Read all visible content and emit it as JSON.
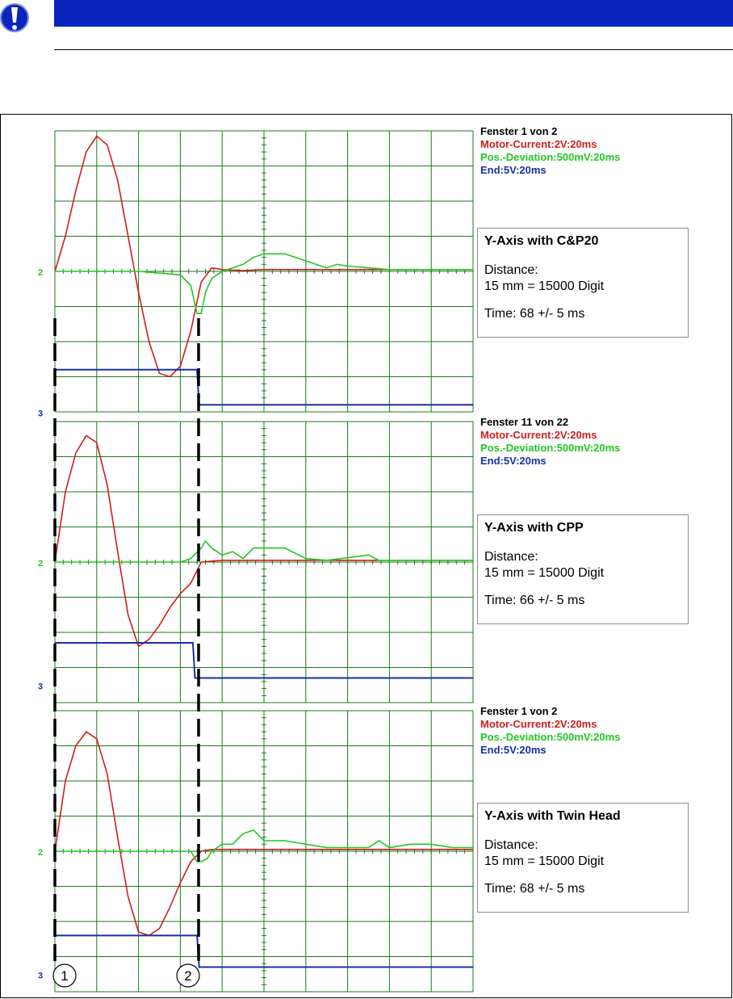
{
  "colors": {
    "header": "#0b24bd",
    "grid": "#1c7a1c",
    "motor": "#d21c1c",
    "deviation": "#22c722",
    "end": "#1530a8",
    "dash": "#000000"
  },
  "icons": {
    "warning": "exclamation-icon"
  },
  "channel_labels": {
    "ch2": "2",
    "ch3": "3"
  },
  "markers": [
    "1",
    "2"
  ],
  "panels": [
    {
      "legend": {
        "window": "Fenster 1 von 2",
        "motor": "Motor-Current:2V:20ms",
        "deviation": "Pos.-Deviation:500mV:20ms",
        "end": "End:5V:20ms"
      },
      "box": {
        "title": "Y-Axis with C&P20",
        "distance_label": "Distance:",
        "distance_value": "15 mm = 15000 Digit",
        "time": "Time: 68 +/- 5 ms"
      }
    },
    {
      "legend": {
        "window": "Fenster 11 von 22",
        "motor": "Motor-Current:2V:20ms",
        "deviation": "Pos.-Deviation:500mV:20ms",
        "end": "End:5V:20ms"
      },
      "box": {
        "title": "Y-Axis with CPP",
        "distance_label": "Distance:",
        "distance_value": "15 mm = 15000 Digit",
        "time": "Time: 66 +/- 5 ms"
      }
    },
    {
      "legend": {
        "window": "Fenster 1 von 2",
        "motor": "Motor-Current:2V:20ms",
        "deviation": "Pos.-Deviation:500mV:20ms",
        "end": "End:5V:20ms"
      },
      "box": {
        "title": "Y-Axis with Twin Head",
        "distance_label": "Distance:",
        "distance_value": "15 mm = 15000 Digit",
        "time": "Time: 68 +/- 5 ms"
      }
    }
  ],
  "chart_data": [
    {
      "type": "line",
      "title": "Y-Axis with C&P20",
      "xlim": [
        0,
        200
      ],
      "ylim": [
        -4,
        4
      ],
      "series": [
        {
          "name": "Motor-Current:2V:20ms",
          "x": [
            0,
            5,
            10,
            15,
            20,
            25,
            30,
            35,
            40,
            45,
            50,
            55,
            60,
            65,
            70,
            75,
            80,
            90,
            100,
            200
          ],
          "y": [
            0,
            1.0,
            2.3,
            3.4,
            3.85,
            3.6,
            2.6,
            1.0,
            -0.6,
            -2.0,
            -2.9,
            -3.0,
            -2.7,
            -1.7,
            -0.3,
            0.1,
            0.05,
            0.02,
            0.05,
            0.05
          ]
        },
        {
          "name": "Pos.-Deviation:500mV:20ms",
          "x": [
            0,
            40,
            60,
            65,
            68,
            70,
            72,
            75,
            80,
            85,
            90,
            95,
            100,
            110,
            120,
            130,
            135,
            140,
            150,
            160,
            200
          ],
          "y": [
            0,
            0,
            -0.1,
            -0.4,
            -1.2,
            -1.2,
            -0.6,
            -0.2,
            0,
            0.1,
            0.2,
            0.4,
            0.5,
            0.5,
            0.3,
            0.1,
            0.2,
            0.15,
            0.1,
            0.05,
            0.05
          ]
        },
        {
          "name": "End:5V:20ms",
          "x": [
            0,
            68,
            69,
            200
          ],
          "y": [
            -2.8,
            -2.8,
            -3.8,
            -3.8
          ]
        }
      ]
    },
    {
      "type": "line",
      "title": "Y-Axis with CPP",
      "xlim": [
        0,
        200
      ],
      "ylim": [
        -4,
        4
      ],
      "series": [
        {
          "name": "Motor-Current:2V:20ms",
          "x": [
            0,
            5,
            10,
            15,
            20,
            25,
            30,
            35,
            40,
            45,
            50,
            55,
            60,
            65,
            70,
            80,
            100,
            200
          ],
          "y": [
            0,
            2.0,
            3.1,
            3.6,
            3.4,
            2.2,
            0.3,
            -1.5,
            -2.4,
            -2.2,
            -1.8,
            -1.3,
            -0.9,
            -0.6,
            0,
            0.05,
            0.05,
            0.05
          ]
        },
        {
          "name": "Pos.-Deviation:500mV:20ms",
          "x": [
            0,
            60,
            65,
            70,
            72,
            75,
            80,
            85,
            90,
            95,
            100,
            110,
            120,
            130,
            150,
            155,
            160,
            200
          ],
          "y": [
            0,
            0,
            0.1,
            0.4,
            0.6,
            0.4,
            0.2,
            0.3,
            0.1,
            0.4,
            0.4,
            0.4,
            0.1,
            0.05,
            0.2,
            0.05,
            0.05,
            0.05
          ]
        },
        {
          "name": "End:5V:20ms",
          "x": [
            0,
            66,
            67,
            200
          ],
          "y": [
            -2.3,
            -2.3,
            -3.3,
            -3.3
          ]
        }
      ]
    },
    {
      "type": "line",
      "title": "Y-Axis with Twin Head",
      "xlim": [
        0,
        200
      ],
      "ylim": [
        -4,
        4
      ],
      "series": [
        {
          "name": "Motor-Current:2V:20ms",
          "x": [
            0,
            5,
            10,
            15,
            20,
            25,
            30,
            35,
            40,
            45,
            50,
            55,
            60,
            65,
            70,
            75,
            80,
            100,
            200
          ],
          "y": [
            0,
            2.0,
            3.0,
            3.4,
            3.2,
            2.2,
            0.4,
            -1.3,
            -2.3,
            -2.4,
            -2.2,
            -1.6,
            -0.9,
            -0.3,
            0,
            0.05,
            0.05,
            0.05,
            0.05
          ]
        },
        {
          "name": "Pos.-Deviation:500mV:20ms",
          "x": [
            0,
            65,
            68,
            70,
            73,
            75,
            80,
            85,
            90,
            95,
            100,
            110,
            120,
            130,
            150,
            155,
            160,
            170,
            180,
            190,
            200
          ],
          "y": [
            0,
            0,
            -0.3,
            -0.3,
            -0.2,
            0,
            0.2,
            0.2,
            0.5,
            0.6,
            0.3,
            0.3,
            0.2,
            0.1,
            0.1,
            0.3,
            0.1,
            0.2,
            0.2,
            0.1,
            0.1
          ]
        },
        {
          "name": "End:5V:20ms",
          "x": [
            0,
            68,
            69,
            200
          ],
          "y": [
            -2.4,
            -2.4,
            -3.3,
            -3.3
          ]
        }
      ]
    }
  ]
}
